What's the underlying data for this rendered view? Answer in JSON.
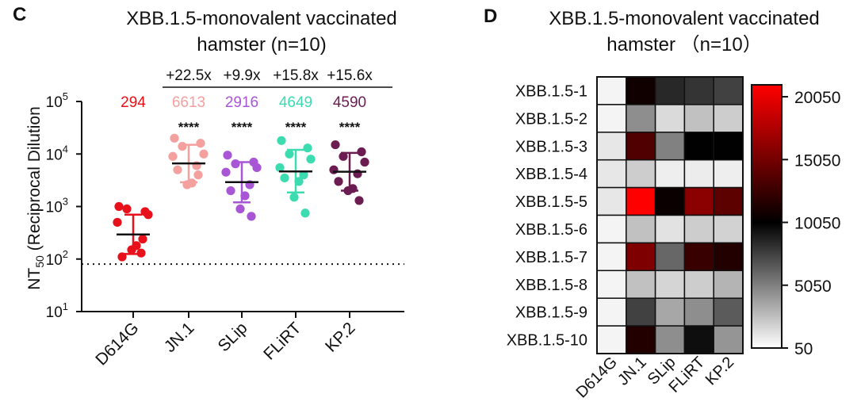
{
  "panels": {
    "left_letter": "C",
    "right_letter": "D"
  },
  "chart_data": [
    {
      "type": "scatter",
      "title": [
        "XBB.1.5-monovalent vaccinated",
        "hamster (n=10)"
      ],
      "ylabel": "NT",
      "ylabel_sub": "50",
      "ylabel_rest": " (Reciprocal Dilution",
      "yscale": "log",
      "ylim": [
        10,
        100000
      ],
      "yticks": [
        {
          "value": 10,
          "base": "10",
          "exp": "1"
        },
        {
          "value": 100,
          "base": "10",
          "exp": "2"
        },
        {
          "value": 1000,
          "base": "10",
          "exp": "3"
        },
        {
          "value": 10000,
          "base": "10",
          "exp": "4"
        },
        {
          "value": 100000,
          "base": "10",
          "exp": "5"
        }
      ],
      "detection_limit": 80,
      "categories": [
        "D614G",
        "JN.1",
        "SLip",
        "FLiRT",
        "KP.2"
      ],
      "colors": [
        "#e8101a",
        "#f4a09e",
        "#a855d6",
        "#3ddcb0",
        "#6b1d52"
      ],
      "gmt_labels": [
        "294",
        "6613",
        "2916",
        "4649",
        "4590"
      ],
      "gmt": [
        294,
        6613,
        2916,
        4649,
        4590
      ],
      "fold_change": [
        "",
        "+22.5x",
        "+9.9x",
        "+15.8x",
        "+15.6x"
      ],
      "significance": [
        "",
        "****",
        "****",
        "****",
        "****"
      ],
      "error_low": [
        125,
        2900,
        1200,
        1850,
        2000
      ],
      "error_high": [
        700,
        15000,
        7000,
        12000,
        10500
      ],
      "points": [
        [
          1000,
          800,
          900,
          700,
          500,
          130,
          110,
          180,
          150,
          240
        ],
        [
          20000,
          16000,
          14000,
          10000,
          9000,
          6000,
          5000,
          2800,
          2600,
          4000
        ],
        [
          9500,
          7000,
          6500,
          5500,
          4500,
          2600,
          2000,
          1600,
          900,
          650
        ],
        [
          18000,
          13000,
          10000,
          8000,
          5500,
          4000,
          3500,
          3000,
          1500,
          750
        ],
        [
          15000,
          11000,
          9000,
          7000,
          5000,
          4200,
          3000,
          2200,
          2000,
          1300
        ]
      ]
    },
    {
      "type": "heatmap",
      "title": [
        "XBB.1.5-monovalent vaccinated",
        "hamster （n=10）"
      ],
      "rows": [
        "XBB.1.5-1",
        "XBB.1.5-2",
        "XBB.1.5-3",
        "XBB.1.5-4",
        "XBB.1.5-5",
        "XBB.1.5-6",
        "XBB.1.5-7",
        "XBB.1.5-8",
        "XBB.1.5-9",
        "XBB.1.5-10"
      ],
      "columns": [
        "D614G",
        "JN.1",
        "SLip",
        "FLiRT",
        "KP.2"
      ],
      "values": [
        [
          500,
          10800,
          8500,
          8000,
          7500
        ],
        [
          500,
          4500,
          1500,
          2500,
          2000
        ],
        [
          1000,
          13500,
          5000,
          10000,
          10000
        ],
        [
          1000,
          2000,
          700,
          800,
          700
        ],
        [
          1000,
          21000,
          10500,
          16000,
          14000
        ],
        [
          500,
          2500,
          1200,
          2000,
          1800
        ],
        [
          500,
          15500,
          6000,
          12500,
          11500
        ],
        [
          500,
          2500,
          1700,
          2000,
          3000
        ],
        [
          500,
          7500,
          3500,
          4500,
          6500
        ],
        [
          500,
          11500,
          4500,
          9500,
          4200
        ]
      ],
      "colorbar_ticks": [
        50,
        5050,
        10050,
        15050,
        20050
      ],
      "colorbar_range": [
        50,
        21000
      ],
      "colorbar_colors": [
        "#ffffff",
        "#000000",
        "#ff0000"
      ]
    }
  ]
}
